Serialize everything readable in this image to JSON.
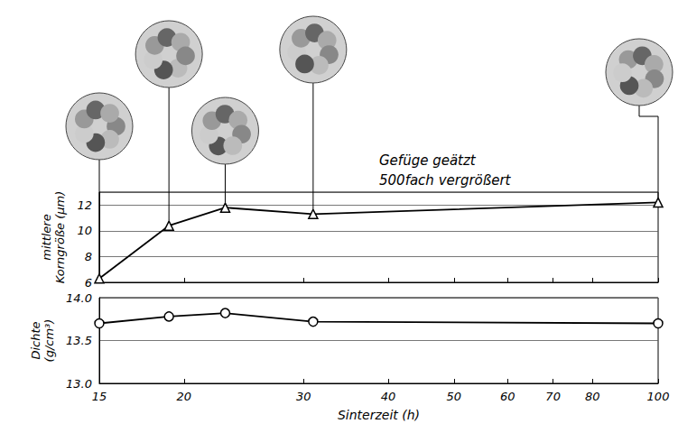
{
  "chart_data": [
    {
      "type": "line",
      "ylabel": "mittlere Korngröße (µm)",
      "x": [
        15,
        19,
        23,
        31,
        100
      ],
      "values": [
        6.3,
        10.4,
        11.8,
        11.3,
        12.2
      ],
      "color": "#000000",
      "marker": "triangle",
      "log": "x",
      "xlim": [
        15,
        100
      ],
      "xticks": [
        15,
        20,
        30,
        40,
        50,
        60,
        70,
        80,
        100
      ],
      "ylim": [
        6,
        13
      ],
      "yticks": [
        6,
        8,
        10,
        12
      ],
      "grid": true,
      "tick_labels": "y",
      "annotations": [
        "Gefüge geätzt",
        "500fach vergrößert"
      ]
    },
    {
      "type": "line",
      "xlabel": "Sinterzeit (h)",
      "ylabel": "Dichte (g/cm³)",
      "x": [
        15,
        19,
        23,
        31,
        100
      ],
      "values": [
        13.7,
        13.78,
        13.82,
        13.72,
        13.7
      ],
      "color": "#000000",
      "marker": "circle",
      "log": "x",
      "xlim": [
        15,
        100
      ],
      "xticks": [
        15,
        20,
        30,
        40,
        50,
        60,
        70,
        80,
        100
      ],
      "ylim": [
        13.0,
        14.0
      ],
      "yticks": [
        {
          "value": 13.0,
          "label": "13.0"
        },
        {
          "value": 13.5,
          "label": "13.5"
        },
        {
          "value": 14.0,
          "label": "14.0"
        }
      ],
      "grid": true
    }
  ]
}
